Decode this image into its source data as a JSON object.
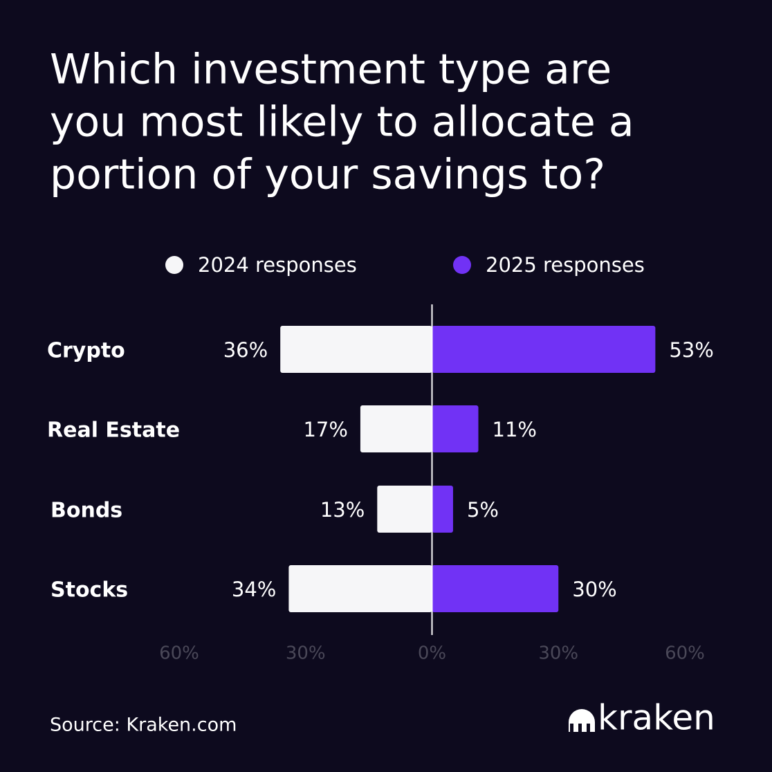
{
  "chart_data": {
    "type": "diverging-bar",
    "title": [
      "Which investment type are",
      "you most likely to allocate a",
      "portion of your savings to?"
    ],
    "categories": [
      "Crypto",
      "Real Estate",
      "Bonds",
      "Stocks"
    ],
    "series": [
      {
        "name": "2024 responses",
        "color": "#f6f6f8",
        "values": [
          36,
          17,
          13,
          34
        ],
        "value_labels": [
          "36%",
          "17%",
          "13%",
          "34%"
        ]
      },
      {
        "name": "2025 responses",
        "color": "#7132f5",
        "values": [
          53,
          11,
          5,
          30
        ],
        "value_labels": [
          "53%",
          "11%",
          "5%",
          "30%"
        ]
      }
    ],
    "xlim": [
      -60,
      60
    ],
    "xticks": [
      {
        "value": -60,
        "label": "60%"
      },
      {
        "value": -30,
        "label": "30%"
      },
      {
        "value": 0,
        "label": "0%"
      },
      {
        "value": 30,
        "label": "30%"
      },
      {
        "value": 60,
        "label": "60%"
      }
    ],
    "source": "Source: Kraken.com",
    "brand": "kraken"
  }
}
